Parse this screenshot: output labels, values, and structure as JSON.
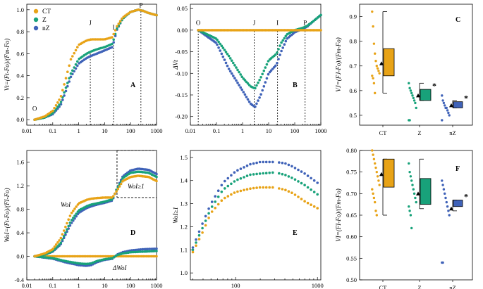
{
  "colors": {
    "CT": "#E8A317",
    "Z": "#18A27A",
    "nZ": "#3F62B8"
  },
  "chart_data": [
    {
      "panel": "A",
      "type": "scatter",
      "xscale": "log",
      "xlim": [
        0.01,
        1000
      ],
      "ylim": [
        -0.05,
        1.05
      ],
      "xticks": [
        "0.01",
        "0.1",
        "1",
        "10",
        "100",
        "1000"
      ],
      "yticks": [
        "0.0",
        "0.2",
        "0.4",
        "0.6",
        "0.8",
        "1.0"
      ],
      "ylabel": "Vt=(Ft-Fo)/(Fm-Fo)",
      "legend": [
        "CT",
        "Z",
        "nZ"
      ],
      "markers": [
        {
          "label": "O",
          "x": 0.02
        },
        {
          "label": "J",
          "x": 2.8
        },
        {
          "label": "I",
          "x": 22
        },
        {
          "label": "P",
          "x": 250
        }
      ],
      "series": [
        {
          "name": "CT",
          "x": [
            0.02,
            0.05,
            0.1,
            0.2,
            0.3,
            0.5,
            1,
            2,
            3,
            5,
            10,
            20,
            30,
            50,
            100,
            200,
            300,
            500,
            1000
          ],
          "y": [
            0,
            0.03,
            0.08,
            0.2,
            0.35,
            0.55,
            0.68,
            0.72,
            0.73,
            0.73,
            0.73,
            0.75,
            0.85,
            0.93,
            0.98,
            1.0,
            0.99,
            0.97,
            0.95
          ]
        },
        {
          "name": "Z",
          "x": [
            0.02,
            0.05,
            0.1,
            0.2,
            0.3,
            0.5,
            1,
            2,
            3,
            5,
            10,
            20,
            30,
            50,
            100,
            200,
            300,
            500,
            1000
          ],
          "y": [
            0,
            0.02,
            0.06,
            0.15,
            0.27,
            0.42,
            0.55,
            0.6,
            0.62,
            0.64,
            0.66,
            0.69,
            0.83,
            0.92,
            0.98,
            1.0,
            0.99,
            0.97,
            0.95
          ]
        },
        {
          "name": "nZ",
          "x": [
            0.02,
            0.05,
            0.1,
            0.2,
            0.3,
            0.5,
            1,
            2,
            3,
            5,
            10,
            20,
            30,
            50,
            100,
            200,
            300,
            500,
            1000
          ],
          "y": [
            0,
            0.02,
            0.05,
            0.13,
            0.24,
            0.39,
            0.51,
            0.56,
            0.58,
            0.6,
            0.63,
            0.66,
            0.82,
            0.92,
            0.98,
            1.0,
            0.99,
            0.97,
            0.95
          ]
        }
      ]
    },
    {
      "panel": "B",
      "type": "scatter",
      "xscale": "log",
      "xlim": [
        0.01,
        1000
      ],
      "ylim": [
        -0.22,
        0.06
      ],
      "xticks": [
        "0.01",
        "0.1",
        "1",
        "10",
        "100",
        "1000"
      ],
      "yticks": [
        "0.05",
        "0.00",
        "-0.05",
        "-0.10",
        "-0.15",
        "-0.20"
      ],
      "ylabel": "ΔVt",
      "markers": [
        {
          "label": "O",
          "x": 0.02
        },
        {
          "label": "J",
          "x": 2.8
        },
        {
          "label": "I",
          "x": 22
        },
        {
          "label": "P",
          "x": 250
        }
      ],
      "series": [
        {
          "name": "CT",
          "x": [
            0.02,
            1000
          ],
          "y": [
            0,
            0
          ]
        },
        {
          "name": "Z",
          "x": [
            0.02,
            0.1,
            0.3,
            1,
            2,
            3,
            5,
            10,
            20,
            30,
            50,
            100,
            200,
            300,
            500,
            1000
          ],
          "y": [
            0,
            -0.02,
            -0.06,
            -0.11,
            -0.13,
            -0.135,
            -0.11,
            -0.07,
            -0.055,
            -0.03,
            -0.01,
            0,
            0.005,
            0.01,
            0.02,
            0.035
          ]
        },
        {
          "name": "nZ",
          "x": [
            0.02,
            0.1,
            0.3,
            1,
            2,
            3,
            5,
            10,
            20,
            30,
            50,
            100,
            200,
            300,
            500,
            1000
          ],
          "y": [
            0,
            -0.03,
            -0.09,
            -0.14,
            -0.17,
            -0.178,
            -0.15,
            -0.1,
            -0.08,
            -0.05,
            -0.02,
            -0.005,
            0.003,
            0.008,
            0.02,
            0.035
          ]
        }
      ]
    },
    {
      "panel": "C",
      "type": "box+strip",
      "ylim": [
        0.46,
        0.95
      ],
      "yticks": [
        "0.5",
        "0.6",
        "0.7",
        "0.8",
        "0.9"
      ],
      "ylabel": "VJ=(FJ-Fo)/(Fm-Fo)",
      "categories": [
        "CT",
        "Z",
        "nZ"
      ],
      "points": {
        "CT": [
          0.92,
          0.86,
          0.79,
          0.75,
          0.72,
          0.7,
          0.69,
          0.68,
          0.67,
          0.66,
          0.65,
          0.63,
          0.59
        ],
        "Z": [
          0.63,
          0.61,
          0.6,
          0.59,
          0.58,
          0.57,
          0.56,
          0.55,
          0.53,
          0.48,
          0.48
        ],
        "nZ": [
          0.58,
          0.56,
          0.55,
          0.54,
          0.53,
          0.53,
          0.52,
          0.51,
          0.5,
          0.48
        ]
      },
      "mean": {
        "CT": 0.71,
        "Z": 0.58,
        "nZ": 0.54
      },
      "box": {
        "CT": [
          0.66,
          0.77
        ],
        "Z": [
          0.56,
          0.605
        ],
        "nZ": [
          0.53,
          0.555
        ]
      },
      "range": {
        "CT": [
          0.59,
          0.92
        ],
        "Z": [
          0.56,
          0.63
        ],
        "nZ": [
          0.53,
          0.56
        ]
      },
      "significant": [
        "Z",
        "nZ"
      ]
    },
    {
      "panel": "D",
      "type": "scatter",
      "xscale": "log",
      "xlim": [
        0.01,
        1000
      ],
      "ylim": [
        -0.4,
        1.8
      ],
      "xticks": [
        "0.01",
        "0.1",
        "1",
        "10",
        "100",
        "1000"
      ],
      "yticks": [
        "1.6",
        "1.2",
        "0.8",
        "0.4",
        "0.0",
        "-0.4"
      ],
      "ylabel": "WoI=(Ft-Fo)/(FI-Fo)",
      "annotations": [
        "WoI",
        "ΔWoI",
        "WoI≥1"
      ],
      "series": [
        {
          "name": "CT",
          "x": [
            0.02,
            0.05,
            0.1,
            0.2,
            0.5,
            1,
            2,
            3,
            5,
            10,
            20,
            30,
            50,
            100,
            200,
            500,
            1000
          ],
          "y": [
            0,
            0.05,
            0.12,
            0.3,
            0.72,
            0.9,
            0.96,
            0.98,
            0.99,
            1.0,
            1.0,
            1.12,
            1.28,
            1.35,
            1.37,
            1.35,
            1.28
          ]
        },
        {
          "name": "Z",
          "x": [
            0.02,
            0.05,
            0.1,
            0.2,
            0.5,
            1,
            2,
            3,
            5,
            10,
            20,
            30,
            50,
            100,
            200,
            500,
            1000
          ],
          "y": [
            0,
            0.03,
            0.09,
            0.22,
            0.6,
            0.78,
            0.85,
            0.88,
            0.9,
            0.93,
            0.97,
            1.15,
            1.33,
            1.42,
            1.44,
            1.42,
            1.35
          ]
        },
        {
          "name": "nZ",
          "x": [
            0.02,
            0.05,
            0.1,
            0.2,
            0.5,
            1,
            2,
            3,
            5,
            10,
            20,
            30,
            50,
            100,
            200,
            500,
            1000
          ],
          "y": [
            0,
            0.03,
            0.08,
            0.2,
            0.55,
            0.74,
            0.82,
            0.85,
            0.88,
            0.91,
            0.95,
            1.16,
            1.36,
            1.46,
            1.49,
            1.47,
            1.4
          ]
        },
        {
          "name": "Z ΔWoI",
          "x": [
            0.02,
            0.1,
            0.3,
            1,
            2,
            3,
            5,
            10,
            20,
            30,
            50,
            100,
            300,
            1000
          ],
          "y": [
            0,
            -0.03,
            -0.08,
            -0.12,
            -0.13,
            -0.12,
            -0.08,
            -0.05,
            -0.03,
            0.02,
            0.05,
            0.07,
            0.08,
            0.09
          ]
        },
        {
          "name": "nZ ΔWoI",
          "x": [
            0.02,
            0.1,
            0.3,
            1,
            2,
            3,
            5,
            10,
            20,
            30,
            50,
            100,
            300,
            1000
          ],
          "y": [
            0,
            -0.04,
            -0.1,
            -0.15,
            -0.16,
            -0.15,
            -0.1,
            -0.06,
            -0.04,
            0.03,
            0.07,
            0.1,
            0.12,
            0.13
          ]
        }
      ]
    },
    {
      "panel": "E",
      "type": "scatter",
      "xscale": "log",
      "xlim": [
        28,
        1100
      ],
      "ylim": [
        0.97,
        1.53
      ],
      "xticks": [
        "100",
        "1000"
      ],
      "yticks": [
        "1.5",
        "1.4",
        "1.3",
        "1.2",
        "1.1",
        "1.0"
      ],
      "ylabel": "WoI≥1",
      "series": [
        {
          "name": "CT",
          "x": [
            30,
            40,
            50,
            70,
            100,
            150,
            200,
            300,
            400,
            500,
            700,
            1000
          ],
          "y": [
            1.09,
            1.18,
            1.26,
            1.32,
            1.35,
            1.365,
            1.37,
            1.37,
            1.36,
            1.345,
            1.31,
            1.28
          ]
        },
        {
          "name": "Z",
          "x": [
            30,
            40,
            50,
            70,
            100,
            150,
            200,
            300,
            400,
            500,
            700,
            1000
          ],
          "y": [
            1.1,
            1.2,
            1.28,
            1.36,
            1.4,
            1.425,
            1.43,
            1.435,
            1.425,
            1.41,
            1.38,
            1.34
          ]
        },
        {
          "name": "nZ",
          "x": [
            30,
            40,
            50,
            70,
            100,
            150,
            200,
            300,
            400,
            500,
            700,
            1000
          ],
          "y": [
            1.11,
            1.22,
            1.3,
            1.39,
            1.44,
            1.47,
            1.48,
            1.48,
            1.475,
            1.46,
            1.43,
            1.39
          ]
        }
      ]
    },
    {
      "panel": "F",
      "type": "box+strip",
      "ylim": [
        0.5,
        0.8
      ],
      "yticks": [
        "0.80",
        "0.75",
        "0.70",
        "0.65",
        "0.60",
        "0.55",
        "0.50"
      ],
      "ylabel": "VI=(FI-Fo)/(Fm-Fo)",
      "categories": [
        "CT",
        "Z",
        "nZ"
      ],
      "points": {
        "CT": [
          0.8,
          0.79,
          0.78,
          0.77,
          0.76,
          0.75,
          0.74,
          0.73,
          0.72,
          0.71,
          0.7,
          0.69,
          0.68,
          0.66,
          0.65
        ],
        "Z": [
          0.77,
          0.75,
          0.74,
          0.73,
          0.72,
          0.71,
          0.7,
          0.69,
          0.68,
          0.67,
          0.66,
          0.65,
          0.62
        ],
        "nZ": [
          0.73,
          0.72,
          0.71,
          0.7,
          0.69,
          0.68,
          0.67,
          0.66,
          0.65,
          0.54,
          0.54
        ]
      },
      "mean": {
        "CT": 0.745,
        "Z": 0.7,
        "nZ": 0.665
      },
      "box": {
        "CT": [
          0.715,
          0.78
        ],
        "Z": [
          0.675,
          0.735
        ],
        "nZ": [
          0.67,
          0.685
        ]
      },
      "range": {
        "CT": [
          0.65,
          0.78
        ],
        "Z": [
          0.665,
          0.78
        ],
        "nZ": [
          0.66,
          0.685
        ]
      },
      "significant": [
        "nZ"
      ]
    }
  ],
  "text": {
    "A": "A",
    "B": "B",
    "C": "C",
    "D": "D",
    "E": "E",
    "F": "F",
    "legend_ct": "CT",
    "legend_z": "Z",
    "legend_nz": "nZ",
    "O": "O",
    "J": "J",
    "I": "I",
    "P": "P",
    "ylab_a": "Vt=(Ft-Fo)/(Fm-Fo)",
    "ylab_b": "ΔVt",
    "ylab_c": "VJ=(FJ-Fo)/(Fm-Fo)",
    "ylab_d": "WoI=(Ft-Fo)/(FI-Fo)",
    "ylab_e": "WoI≥1",
    "ylab_f": "VI=(FI-Fo)/(Fm-Fo)",
    "anno_wol": "WoI",
    "anno_dwol": "ΔWoI",
    "anno_wol1": "WoI≥1",
    "star": "*",
    "cat_ct": "CT",
    "cat_z": "Z",
    "cat_nz": "nZ"
  }
}
